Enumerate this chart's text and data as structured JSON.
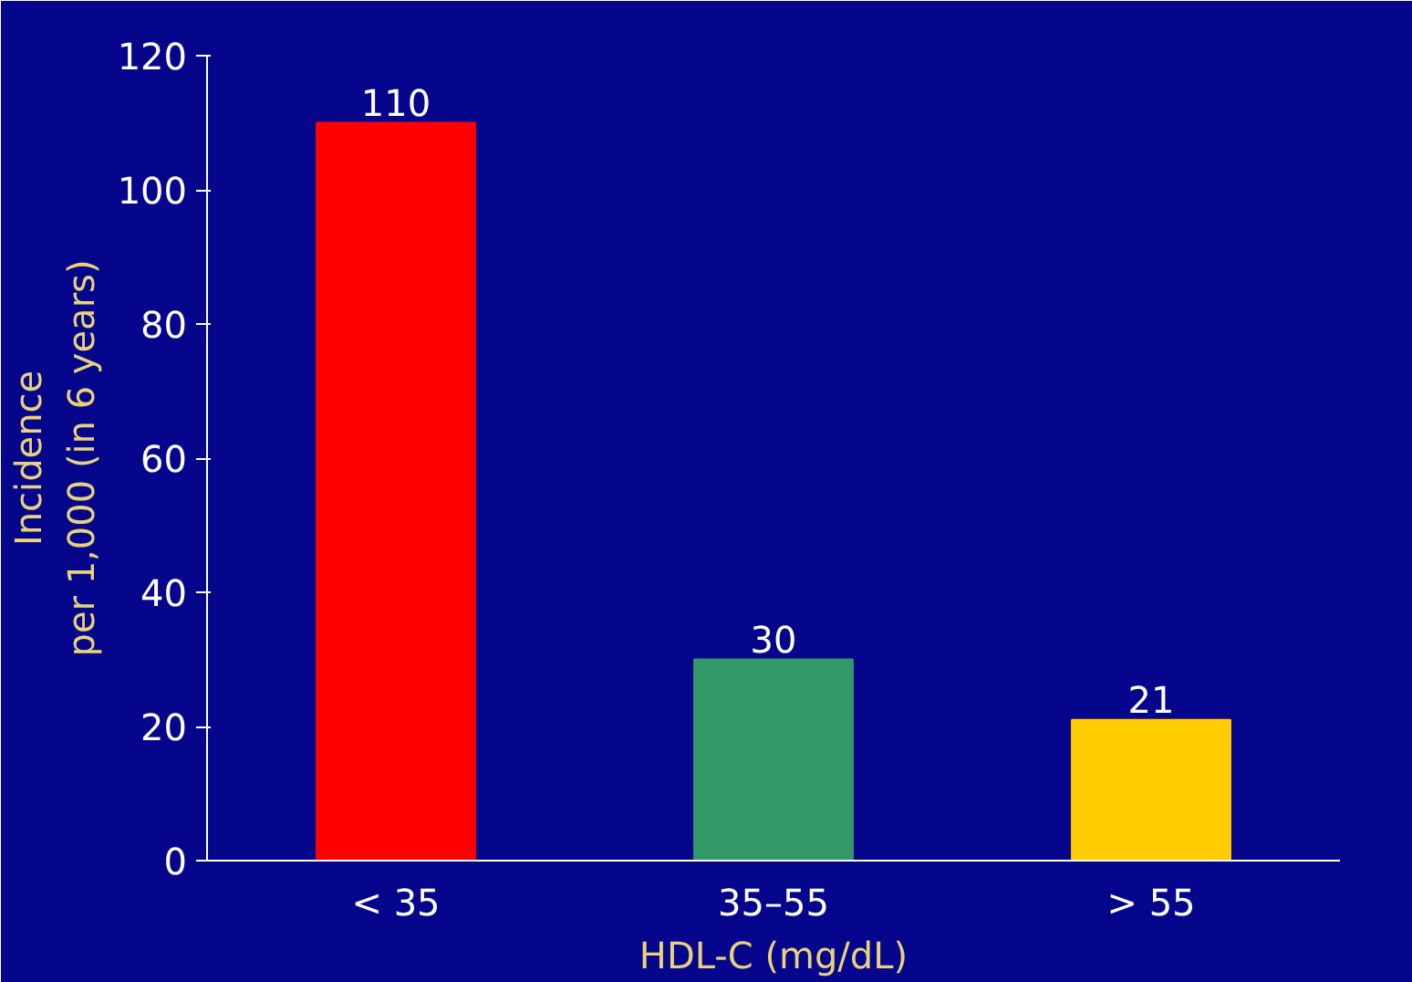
{
  "chart_data": {
    "type": "bar",
    "categories": [
      "< 35",
      "35–55",
      "> 55"
    ],
    "values": [
      110,
      30,
      21
    ],
    "colors": [
      "#ff0000",
      "#339966",
      "#ffcc00"
    ],
    "xlabel": "HDL-C (mg/dL)",
    "ylabel": "Incidence\nper 1,000 (in 6 years)",
    "ylim": [
      0,
      120
    ],
    "yticks": [
      0,
      20,
      40,
      60,
      80,
      100,
      120
    ],
    "data_labels": true,
    "grid": false
  }
}
